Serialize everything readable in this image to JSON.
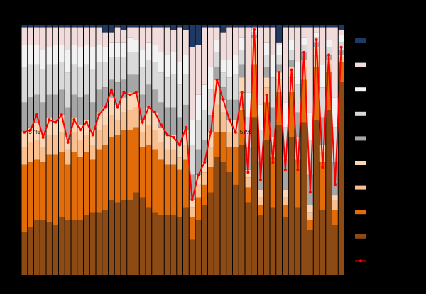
{
  "chart_data": {
    "type": "bar",
    "stacked": true,
    "ylim": [
      0,
      100
    ],
    "series": [
      {
        "color": "#8c4a14",
        "values": [
          17,
          19,
          22,
          22,
          21,
          20,
          23,
          22,
          22,
          22,
          24,
          25,
          25,
          26,
          30,
          29,
          30,
          30,
          33,
          31,
          27,
          25,
          24,
          24,
          24,
          23,
          27,
          14,
          22,
          28,
          33,
          47,
          45,
          41,
          36,
          52,
          29,
          63,
          24,
          54,
          27,
          60,
          23,
          55,
          27,
          61,
          18,
          62,
          26,
          66,
          20,
          77
        ]
      },
      {
        "color": "#e36c0a",
        "values": [
          27,
          26,
          24,
          23,
          27,
          28,
          26,
          22,
          27,
          25,
          25,
          21,
          25,
          26,
          25,
          27,
          28,
          28,
          26,
          20,
          25,
          25,
          22,
          20,
          20,
          19,
          19,
          9,
          9,
          8,
          10,
          10,
          12,
          10,
          15,
          14,
          6,
          21,
          4,
          15,
          20,
          13,
          5,
          18,
          19,
          17,
          4,
          21,
          19,
          15,
          6,
          8
        ]
      },
      {
        "color": "#fabf8f",
        "values": [
          7,
          8,
          8,
          6,
          8,
          8,
          8,
          6,
          8,
          7,
          7,
          6,
          8,
          8,
          9,
          6,
          7,
          8,
          8,
          6,
          8,
          8,
          7,
          6,
          6,
          5,
          6,
          4,
          5,
          5,
          8,
          11,
          8,
          6,
          6,
          7,
          4,
          7,
          3,
          6,
          5,
          5,
          3,
          6,
          5,
          5,
          3,
          5,
          4,
          3,
          4,
          2
        ]
      },
      {
        "color": "#fcd5b4",
        "values": [
          6,
          6,
          7,
          6,
          7,
          6,
          7,
          5,
          6,
          6,
          6,
          6,
          7,
          7,
          7,
          6,
          6,
          7,
          6,
          5,
          7,
          7,
          6,
          6,
          6,
          5,
          6,
          3,
          4,
          4,
          6,
          10,
          5,
          5,
          5,
          6,
          3,
          4,
          3,
          4,
          3,
          3,
          3,
          4,
          4,
          3,
          3,
          3,
          3,
          2,
          2,
          1
        ]
      },
      {
        "color": "#a6a6a6",
        "values": [
          12,
          12,
          11,
          12,
          9,
          10,
          10,
          12,
          9,
          11,
          10,
          11,
          9,
          8,
          7,
          9,
          7,
          7,
          7,
          10,
          9,
          9,
          10,
          11,
          11,
          11,
          10,
          10,
          10,
          9,
          7,
          5,
          5,
          8,
          8,
          5,
          9,
          1,
          11,
          4,
          12,
          3,
          12,
          3,
          10,
          3,
          12,
          2,
          11,
          2,
          13,
          2
        ]
      },
      {
        "color": "#d9d9d9",
        "values": [
          14,
          13,
          12,
          13,
          12,
          12,
          11,
          14,
          12,
          12,
          12,
          13,
          11,
          10,
          9,
          10,
          9,
          9,
          9,
          11,
          10,
          11,
          12,
          12,
          13,
          13,
          12,
          12,
          12,
          12,
          10,
          6,
          6,
          9,
          10,
          6,
          12,
          1,
          13,
          5,
          12,
          4,
          13,
          4,
          11,
          3,
          14,
          2,
          12,
          3,
          14,
          3
        ]
      },
      {
        "color": "#f2f2f2",
        "values": [
          9,
          8,
          8,
          8,
          7,
          8,
          7,
          9,
          8,
          8,
          8,
          9,
          7,
          6,
          6,
          6,
          6,
          6,
          5,
          7,
          7,
          7,
          8,
          9,
          9,
          9,
          8,
          10,
          10,
          10,
          9,
          5,
          5,
          7,
          8,
          5,
          10,
          1,
          10,
          5,
          9,
          4,
          10,
          4,
          9,
          3,
          11,
          2,
          9,
          3,
          12,
          3
        ]
      },
      {
        "color": "#f2dcdb",
        "values": [
          7,
          7,
          7,
          9,
          8,
          7,
          7,
          9,
          7,
          8,
          7,
          8,
          7,
          6,
          4,
          6,
          5,
          4,
          5,
          9,
          6,
          7,
          10,
          11,
          9,
          14,
          10,
          29,
          20,
          23,
          16,
          5,
          11,
          13,
          11,
          4,
          26,
          1,
          31,
          6,
          11,
          1,
          30,
          5,
          14,
          4,
          34,
          2,
          15,
          5,
          28,
          2
        ]
      },
      {
        "color": "#1f3864",
        "values": [
          1,
          1,
          1,
          1,
          1,
          1,
          1,
          1,
          1,
          1,
          1,
          1,
          1,
          3,
          3,
          1,
          2,
          1,
          1,
          1,
          1,
          1,
          1,
          1,
          2,
          1,
          2,
          9,
          8,
          1,
          1,
          1,
          3,
          1,
          1,
          1,
          1,
          1,
          1,
          1,
          1,
          7,
          1,
          1,
          1,
          1,
          1,
          1,
          1,
          1,
          1,
          2
        ]
      },
      {
        "type": "line",
        "color": "#ff0000",
        "values": [
          57,
          58,
          64,
          55,
          62,
          61,
          64,
          53,
          62,
          58,
          61,
          56,
          64,
          67,
          74,
          67,
          73,
          72,
          73,
          61,
          67,
          65,
          60,
          56,
          55,
          52,
          59,
          30,
          40,
          45,
          57,
          78,
          70,
          62,
          57,
          73,
          41,
          98,
          38,
          72,
          45,
          81,
          42,
          82,
          42,
          89,
          33,
          94,
          43,
          88,
          36,
          91
        ],
        "value_labels": [
          "57%",
          null,
          null,
          null,
          null,
          null,
          null,
          null,
          null,
          null,
          null,
          null,
          null,
          null,
          null,
          null,
          null,
          null,
          null,
          null,
          null,
          null,
          null,
          null,
          null,
          null,
          null,
          null,
          null,
          null,
          null,
          null,
          null,
          null,
          "57%",
          null,
          null,
          null,
          null,
          null,
          null,
          null,
          null,
          null,
          null,
          null,
          null,
          null,
          null,
          null,
          null,
          null
        ]
      }
    ]
  }
}
